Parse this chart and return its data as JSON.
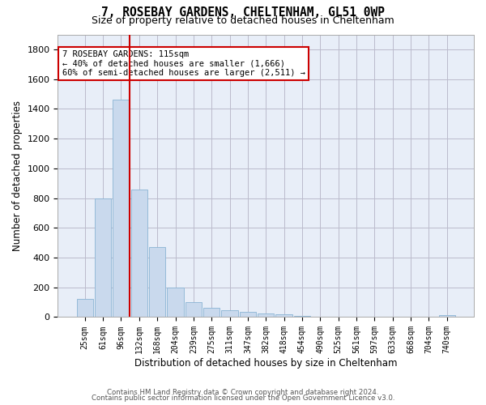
{
  "title": "7, ROSEBAY GARDENS, CHELTENHAM, GL51 0WP",
  "subtitle": "Size of property relative to detached houses in Cheltenham",
  "xlabel": "Distribution of detached houses by size in Cheltenham",
  "ylabel": "Number of detached properties",
  "bar_color": "#c9d9ed",
  "bar_edge_color": "#8ab4d4",
  "background_color": "#ffffff",
  "plot_bg_color": "#e8eef8",
  "grid_color": "#bbbbcc",
  "categories": [
    "25sqm",
    "61sqm",
    "96sqm",
    "132sqm",
    "168sqm",
    "204sqm",
    "239sqm",
    "275sqm",
    "311sqm",
    "347sqm",
    "382sqm",
    "418sqm",
    "454sqm",
    "490sqm",
    "525sqm",
    "561sqm",
    "597sqm",
    "633sqm",
    "668sqm",
    "704sqm",
    "740sqm"
  ],
  "values": [
    120,
    795,
    1460,
    860,
    470,
    200,
    100,
    65,
    45,
    35,
    25,
    20,
    10,
    0,
    0,
    0,
    0,
    0,
    0,
    0,
    15
  ],
  "ylim": [
    0,
    1900
  ],
  "yticks": [
    0,
    200,
    400,
    600,
    800,
    1000,
    1200,
    1400,
    1600,
    1800
  ],
  "marker_bin": 2,
  "marker_color": "#cc0000",
  "annotation_title": "7 ROSEBAY GARDENS: 115sqm",
  "annotation_line1": "← 40% of detached houses are smaller (1,666)",
  "annotation_line2": "60% of semi-detached houses are larger (2,511) →",
  "footer_line1": "Contains HM Land Registry data © Crown copyright and database right 2024.",
  "footer_line2": "Contains public sector information licensed under the Open Government Licence v3.0."
}
